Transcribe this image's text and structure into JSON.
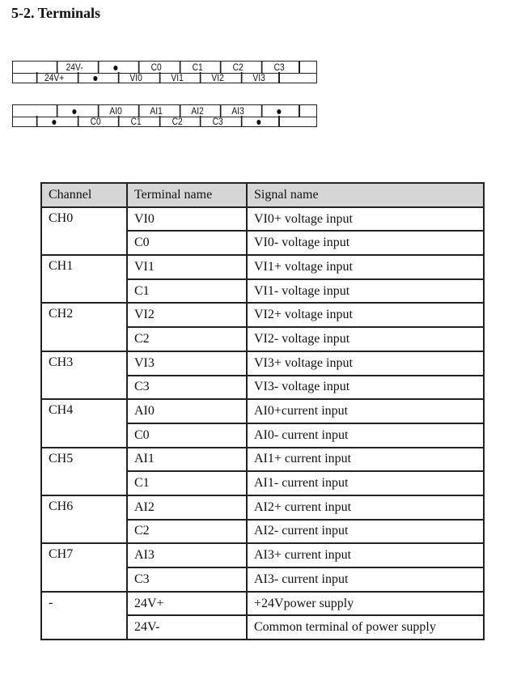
{
  "title": "5-2. Terminals",
  "diagram1": {
    "top": [
      "",
      "24V-",
      "•",
      "C0",
      "C1",
      "C2",
      "C3",
      ""
    ],
    "bottom": [
      "",
      "24V+",
      "•",
      "VI0",
      "VI1",
      "VI2",
      "VI3",
      ""
    ]
  },
  "diagram2": {
    "top": [
      "",
      "•",
      "AI0",
      "AI1",
      "AI2",
      "AI3",
      "•",
      ""
    ],
    "bottom": [
      "",
      "•",
      "C0",
      "C1",
      "C2",
      "C3",
      "•",
      ""
    ]
  },
  "table": {
    "headers": [
      "Channel",
      "Terminal name",
      "Signal name"
    ],
    "groups": [
      {
        "channel": "CH0",
        "rows": [
          [
            "VI0",
            "VI0+ voltage input"
          ],
          [
            "C0",
            "VI0- voltage input"
          ]
        ]
      },
      {
        "channel": "CH1",
        "rows": [
          [
            "VI1",
            "VI1+ voltage input"
          ],
          [
            "C1",
            "VI1- voltage input"
          ]
        ]
      },
      {
        "channel": "CH2",
        "rows": [
          [
            "VI2",
            "VI2+ voltage input"
          ],
          [
            "C2",
            "VI2- voltage input"
          ]
        ]
      },
      {
        "channel": "CH3",
        "rows": [
          [
            "VI3",
            "VI3+ voltage input"
          ],
          [
            "C3",
            "VI3- voltage input"
          ]
        ]
      },
      {
        "channel": "CH4",
        "rows": [
          [
            "AI0",
            "AI0+current input"
          ],
          [
            "C0",
            "AI0- current input"
          ]
        ]
      },
      {
        "channel": "CH5",
        "rows": [
          [
            "AI1",
            "AI1+ current input"
          ],
          [
            "C1",
            "AI1- current input"
          ]
        ]
      },
      {
        "channel": "CH6",
        "rows": [
          [
            "AI2",
            "AI2+ current input"
          ],
          [
            "C2",
            "AI2- current input"
          ]
        ]
      },
      {
        "channel": "CH7",
        "rows": [
          [
            "AI3",
            "AI3+ current input"
          ],
          [
            "C3",
            "AI3- current input"
          ]
        ]
      },
      {
        "channel": "-",
        "rows": [
          [
            "24V+",
            "+24Vpower supply"
          ],
          [
            "24V-",
            "Common terminal of power supply"
          ]
        ]
      }
    ]
  }
}
